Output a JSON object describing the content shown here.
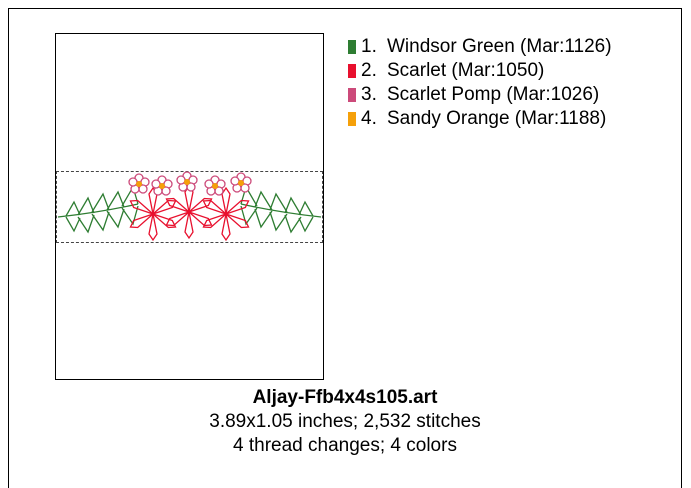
{
  "legend": {
    "items": [
      {
        "num": "1.",
        "label": "Windsor Green (Mar:1126)",
        "color": "#2e7d32"
      },
      {
        "num": "2.",
        "label": "Scarlet (Mar:1050)",
        "color": "#e8102e"
      },
      {
        "num": "3.",
        "label": "Scarlet Pomp (Mar:1026)",
        "color": "#cc4a7a"
      },
      {
        "num": "4.",
        "label": "Sandy Orange (Mar:1188)",
        "color": "#f5a00a"
      }
    ]
  },
  "caption": {
    "filename": "Aljay-Ffb4x4s105.art",
    "dimensions": "3.89x1.05 inches; 2,532 stitches",
    "threads": "4 thread changes; 4 colors"
  }
}
